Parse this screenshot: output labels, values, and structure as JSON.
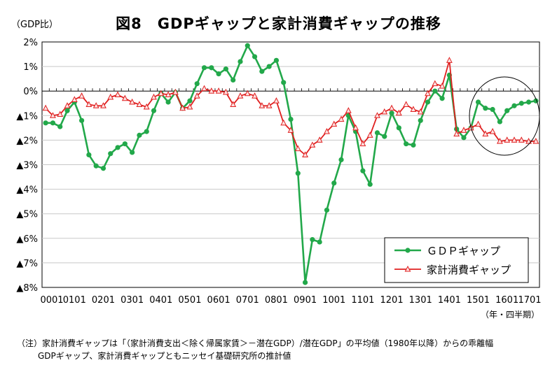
{
  "chart_data": {
    "type": "line",
    "title": "図8　GDPギャップと家計消費ギャップの推移",
    "ylabel": "（GDP比）",
    "xlabel": "（年・四半期）",
    "ylim": [
      -8,
      2
    ],
    "yticks": [
      2,
      1,
      0,
      -1,
      -2,
      -3,
      -4,
      -5,
      -6,
      -7,
      -8
    ],
    "ytick_labels": [
      "2%",
      "1%",
      "0%",
      "▲1%",
      "▲2%",
      "▲3%",
      "▲4%",
      "▲5%",
      "▲6%",
      "▲7%",
      "▲8%"
    ],
    "x_tick_labels": [
      "0001",
      "0101",
      "0201",
      "0301",
      "0401",
      "0501",
      "0601",
      "0701",
      "0801",
      "0901",
      "1001",
      "1101",
      "1201",
      "1301",
      "1401",
      "1501",
      "1601",
      "1701"
    ],
    "x_tick_every": 4,
    "grid": true,
    "legend": "bottom-right",
    "series": [
      {
        "name": "ＧＤＰギャップ",
        "color": "#22a84a",
        "marker": "circle",
        "values": [
          -1.3,
          -1.3,
          -1.45,
          -0.8,
          -0.45,
          -1.2,
          -2.6,
          -3.05,
          -3.15,
          -2.55,
          -2.3,
          -2.15,
          -2.5,
          -1.8,
          -1.65,
          -0.8,
          -0.1,
          -0.45,
          -0.05,
          -0.7,
          -0.4,
          0.3,
          0.95,
          0.95,
          0.7,
          0.9,
          0.45,
          1.2,
          1.85,
          1.4,
          0.8,
          1.0,
          1.25,
          0.35,
          -1.15,
          -3.35,
          -7.8,
          -6.05,
          -6.15,
          -4.85,
          -3.75,
          -2.8,
          -1.0,
          -1.65,
          -3.25,
          -3.8,
          -1.7,
          -1.85,
          -0.9,
          -1.5,
          -2.15,
          -2.2,
          -1.2,
          -0.45,
          0.0,
          -0.3,
          0.65,
          -1.55,
          -1.9,
          -1.5,
          -0.45,
          -0.7,
          -0.75,
          -1.25,
          -0.8,
          -0.6,
          -0.5,
          -0.45,
          -0.4
        ]
      },
      {
        "name": "家計消費ギャップ",
        "color": "#e02020",
        "marker": "triangle",
        "values": [
          -0.7,
          -1.0,
          -0.95,
          -0.6,
          -0.35,
          -0.2,
          -0.55,
          -0.6,
          -0.6,
          -0.25,
          -0.15,
          -0.3,
          -0.45,
          -0.55,
          -0.65,
          -0.25,
          -0.1,
          -0.15,
          -0.05,
          -0.7,
          -0.65,
          -0.2,
          0.1,
          0.0,
          0.0,
          -0.05,
          -0.55,
          -0.2,
          -0.1,
          -0.2,
          -0.6,
          -0.6,
          -0.4,
          -1.3,
          -1.6,
          -2.35,
          -2.6,
          -2.2,
          -2.0,
          -1.65,
          -1.35,
          -1.15,
          -0.8,
          -1.5,
          -2.15,
          -1.8,
          -1.0,
          -0.85,
          -0.7,
          -0.9,
          -0.55,
          -0.75,
          -0.85,
          -0.1,
          0.3,
          0.2,
          1.25,
          -1.75,
          -1.6,
          -1.5,
          -1.35,
          -1.75,
          -1.65,
          -2.05,
          -2.0,
          -2.0,
          -2.0,
          -2.05,
          -2.05
        ]
      }
    ],
    "annotation": "ellipse around 1501–1701"
  },
  "notes": [
    "（注）家計消費ギャップは「（家計消費支出＜除く帰属家賃＞－潜在GDP）/潜在GDP」の平均値（1980年以降）からの乖離幅",
    "GDPギャップ、家計消費ギャップともニッセイ基礎研究所の推計値"
  ]
}
